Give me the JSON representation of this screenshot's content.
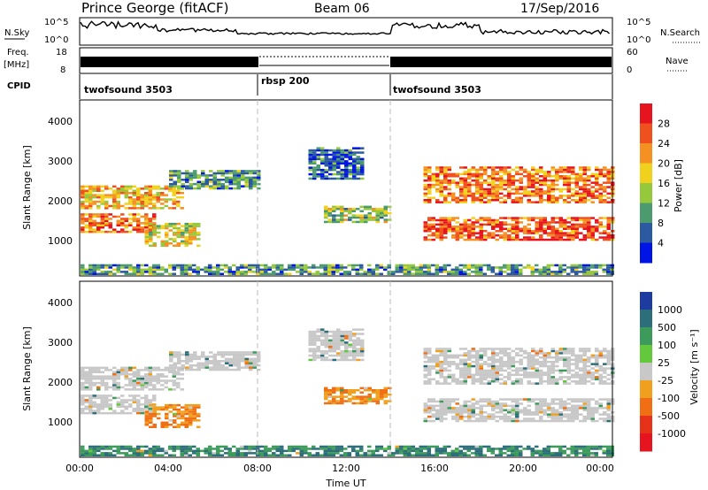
{
  "header": {
    "station": "Prince George (fitACF)",
    "beam": "Beam 06",
    "date": "17/Sep/2016"
  },
  "noise_panel": {
    "left_label": "N.Sky",
    "right_label": "N.Search",
    "left_ticks": [
      "10^5",
      "10^0"
    ],
    "right_ticks": [
      "10^5",
      "10^0"
    ]
  },
  "freq_panel": {
    "left_label_line1": "Freq.",
    "left_label_line2": "[MHz]",
    "right_label": "Nave",
    "left_ticks": [
      "18",
      "8"
    ],
    "right_ticks": [
      "60",
      "0"
    ]
  },
  "cpid_panel": {
    "label": "CPID",
    "segments": [
      {
        "name": "twofsound 3503",
        "start_hour": 0,
        "end_hour": 8
      },
      {
        "name": "rbsp 200",
        "start_hour": 8,
        "end_hour": 14
      },
      {
        "name": "twofsound 3503",
        "start_hour": 14,
        "end_hour": 24
      }
    ]
  },
  "power_colorbar": {
    "label": "Power [dB]",
    "ticks": [
      "28",
      "24",
      "20",
      "16",
      "12",
      "8",
      "4"
    ],
    "colors": [
      "#e6141e",
      "#f0501e",
      "#f59023",
      "#f0d21e",
      "#96c83c",
      "#4b9b6e",
      "#2c5aa0",
      "#0014e6"
    ]
  },
  "velocity_colorbar": {
    "label": "Velocity [m s⁻¹]",
    "ticks": [
      "1000",
      "500",
      "100",
      "25",
      "-25",
      "-100",
      "-500",
      "-1000"
    ],
    "colors": [
      "#1e3ca0",
      "#2c6e7a",
      "#3c9b5a",
      "#64c83c",
      "#c8c8c8",
      "#f0a01e",
      "#f06e14",
      "#e63219",
      "#e6141e"
    ]
  },
  "axes": {
    "ylabel": "Slant Range [km]",
    "xlabel": "Time UT",
    "y_ticks": [
      "1000",
      "2000",
      "3000",
      "4000"
    ],
    "x_ticks": [
      "00:00",
      "04:00",
      "08:00",
      "12:00",
      "16:00",
      "20:00",
      "00:00"
    ]
  },
  "chart_data": {
    "type": "heatmap",
    "title": "Prince George (fitACF)",
    "xlabel": "Time UT",
    "ylabel": "Slant Range [km]",
    "xlim_hours": [
      0,
      24
    ],
    "ylim_km": [
      180,
      4600
    ],
    "mode_boundaries_hours": [
      8,
      14
    ],
    "power_db_range": [
      0,
      30
    ],
    "velocity_range": [
      -1000,
      1000
    ],
    "echo_regions": [
      {
        "t0": 0.0,
        "t1": 4.6,
        "r0": 1850,
        "r1": 2450,
        "power_db": 20,
        "velocity": 0
      },
      {
        "t0": 0.0,
        "t1": 3.4,
        "r0": 1250,
        "r1": 1700,
        "power_db": 24,
        "velocity": 0
      },
      {
        "t0": 2.9,
        "t1": 5.3,
        "r0": 900,
        "r1": 1500,
        "power_db": 16,
        "velocity": -100
      },
      {
        "t0": 4.0,
        "t1": 8.0,
        "r0": 2350,
        "r1": 2800,
        "power_db": 10,
        "velocity": 0
      },
      {
        "t0": 10.3,
        "t1": 12.8,
        "r0": 2600,
        "r1": 3400,
        "power_db": 6,
        "velocity": 0
      },
      {
        "t0": 11.0,
        "t1": 14.0,
        "r0": 1500,
        "r1": 1900,
        "power_db": 14,
        "velocity": -100
      },
      {
        "t0": 15.5,
        "t1": 24.0,
        "r0": 2000,
        "r1": 2900,
        "power_db": 24,
        "velocity": 0
      },
      {
        "t0": 15.5,
        "t1": 24.0,
        "r0": 1050,
        "r1": 1650,
        "power_db": 26,
        "velocity": 0
      },
      {
        "t0": 0.0,
        "t1": 24.0,
        "r0": 180,
        "r1": 420,
        "power_db": 10,
        "velocity": 100
      }
    ]
  }
}
